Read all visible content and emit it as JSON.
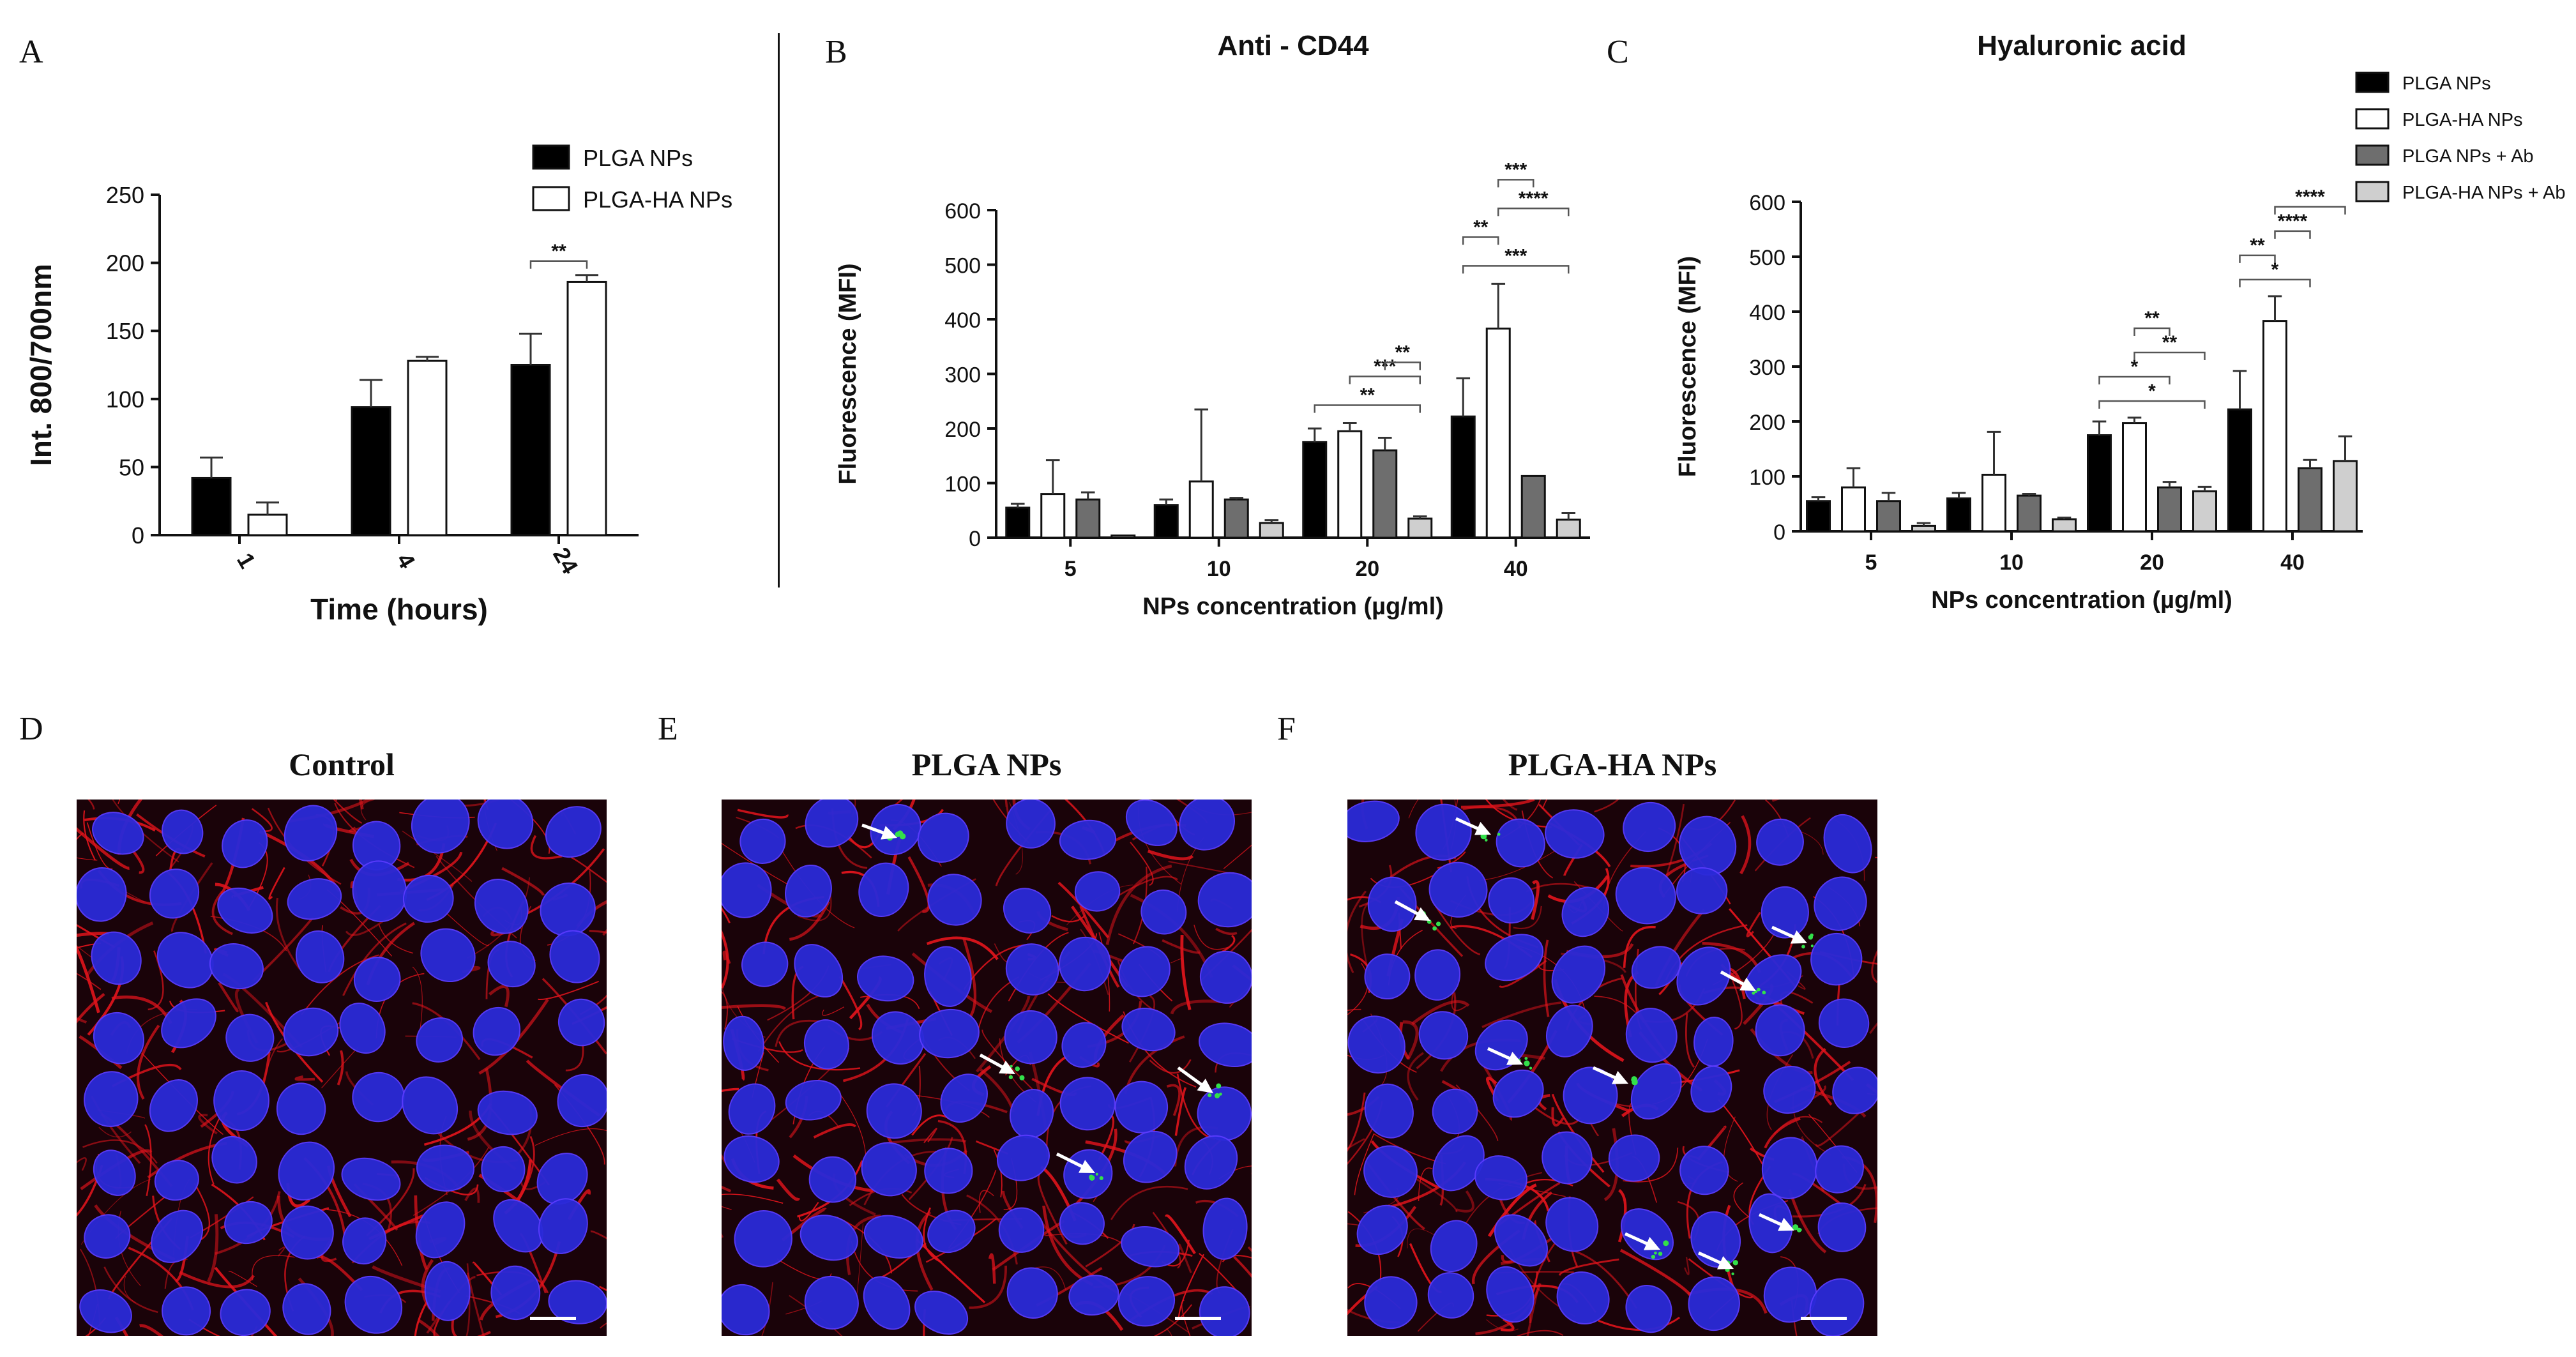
{
  "panels": {
    "a": {
      "letter": "A"
    },
    "b": {
      "letter": "B"
    },
    "c": {
      "letter": "C"
    },
    "d": {
      "letter": "D",
      "title": "Control"
    },
    "e": {
      "letter": "E",
      "title": "PLGA  NPs"
    },
    "f": {
      "letter": "F",
      "title": "PLGA-HA  NPs"
    }
  },
  "colors": {
    "plga": "#000000",
    "plga_ha": "#ffffff",
    "plga_ab": "#6e6e6e",
    "plga_ha_ab": "#cfcfcf",
    "cytoskeleton": "#e0141c",
    "nuclei": "#2a2ad8",
    "nanoparticles": "#33e04a"
  },
  "chart_data": [
    {
      "id": "A",
      "type": "bar",
      "title": "",
      "xlabel": "Time (hours)",
      "ylabel": "Int. 800/700nm",
      "categories": [
        "1",
        "4",
        "24"
      ],
      "ylim": [
        0,
        250
      ],
      "yticks": [
        "0",
        "50",
        "100",
        "150",
        "200",
        "250"
      ],
      "legend_position": "top-right",
      "series": [
        {
          "name": "PLGA NPs",
          "values": [
            42,
            94,
            125
          ],
          "errors": [
            15,
            20,
            23
          ]
        },
        {
          "name": "PLGA-HA NPs",
          "values": [
            15,
            128,
            186
          ],
          "errors": [
            9,
            3,
            5
          ]
        }
      ],
      "significance": [
        {
          "category": "24",
          "from_series": 0,
          "to_series": 1,
          "label": "**"
        }
      ]
    },
    {
      "id": "B",
      "type": "bar",
      "title": "Anti - CD44",
      "xlabel": "NPs concentration (µg/ml)",
      "ylabel": "Fluorescence (MFI)",
      "categories": [
        "5",
        "10",
        "20",
        "40"
      ],
      "ylim": [
        0,
        600
      ],
      "yticks": [
        "0",
        "100",
        "200",
        "300",
        "400",
        "500",
        "600"
      ],
      "series": [
        {
          "name": "PLGA NPs",
          "values": [
            55,
            60,
            175,
            222
          ],
          "errors": [
            7,
            10,
            25,
            70
          ]
        },
        {
          "name": "PLGA-HA NPs",
          "values": [
            80,
            103,
            195,
            383
          ],
          "errors": [
            62,
            132,
            15,
            82
          ]
        },
        {
          "name": "PLGA NPs + Ab",
          "values": [
            70,
            70,
            160,
            113
          ],
          "errors": [
            13,
            3,
            23,
            0
          ]
        },
        {
          "name": "PLGA-HA NPs + Ab",
          "values": [
            4,
            27,
            35,
            33
          ],
          "errors": [
            0,
            5,
            4,
            12
          ]
        }
      ],
      "significance": [
        {
          "category": "20",
          "from_series": 0,
          "to_series": 3,
          "label": "**"
        },
        {
          "category": "20",
          "from_series": 1,
          "to_series": 3,
          "label": "***"
        },
        {
          "category": "20",
          "from_series": 2,
          "to_series": 3,
          "label": "**"
        },
        {
          "category": "40",
          "from_series": 0,
          "to_series": 3,
          "label": "***"
        },
        {
          "category": "40",
          "from_series": 0,
          "to_series": 1,
          "label": "**"
        },
        {
          "category": "40",
          "from_series": 1,
          "to_series": 3,
          "label": "****"
        },
        {
          "category": "40",
          "from_series": 1,
          "to_series": 2,
          "label": "***"
        }
      ]
    },
    {
      "id": "C",
      "type": "bar",
      "title": "Hyaluronic acid",
      "xlabel": "NPs concentration (µg/ml)",
      "ylabel": "Fluorescence (MFI)",
      "categories": [
        "5",
        "10",
        "20",
        "40"
      ],
      "ylim": [
        0,
        600
      ],
      "yticks": [
        "0",
        "100",
        "200",
        "300",
        "400",
        "500",
        "600"
      ],
      "legend_position": "top-right",
      "series": [
        {
          "name": "PLGA NPs",
          "values": [
            55,
            60,
            175,
            222
          ],
          "errors": [
            7,
            10,
            25,
            70
          ]
        },
        {
          "name": "PLGA-HA NPs",
          "values": [
            80,
            103,
            197,
            383
          ],
          "errors": [
            35,
            78,
            10,
            45
          ]
        },
        {
          "name": "PLGA NPs + Ab",
          "values": [
            55,
            65,
            80,
            115
          ],
          "errors": [
            15,
            3,
            10,
            15
          ]
        },
        {
          "name": "PLGA-HA NPs + Ab",
          "values": [
            10,
            22,
            73,
            128
          ],
          "errors": [
            5,
            3,
            8,
            45
          ]
        }
      ],
      "significance": [
        {
          "category": "20",
          "from_series": 0,
          "to_series": 3,
          "label": "*"
        },
        {
          "category": "20",
          "from_series": 0,
          "to_series": 2,
          "label": "*"
        },
        {
          "category": "20",
          "from_series": 1,
          "to_series": 3,
          "label": "**"
        },
        {
          "category": "20",
          "from_series": 1,
          "to_series": 2,
          "label": "**"
        },
        {
          "category": "40",
          "from_series": 0,
          "to_series": 2,
          "label": "*"
        },
        {
          "category": "40",
          "from_series": 0,
          "to_series": 1,
          "label": "**"
        },
        {
          "category": "40",
          "from_series": 1,
          "to_series": 2,
          "label": "****"
        },
        {
          "category": "40",
          "from_series": 1,
          "to_series": 3,
          "label": "****"
        }
      ]
    }
  ]
}
